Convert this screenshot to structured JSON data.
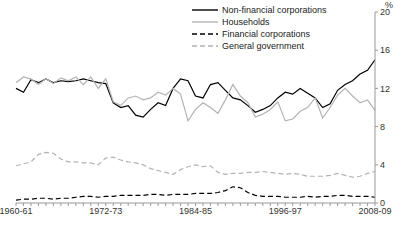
{
  "chart_data": {
    "type": "line",
    "y_label": "%",
    "categories": [
      "1960-61",
      null,
      null,
      null,
      null,
      null,
      null,
      null,
      null,
      null,
      null,
      null,
      "1972-73",
      null,
      null,
      null,
      null,
      null,
      null,
      null,
      null,
      null,
      null,
      null,
      "1984-85",
      null,
      null,
      null,
      null,
      null,
      null,
      null,
      null,
      null,
      null,
      null,
      "1996-97",
      null,
      null,
      null,
      null,
      null,
      null,
      null,
      null,
      null,
      null,
      null,
      "2008-09"
    ],
    "series": [
      {
        "name": "Non-financial corporations",
        "color": "#000000",
        "line_style": "solid",
        "values": [
          12.0,
          11.6,
          12.9,
          12.6,
          13.0,
          12.6,
          12.8,
          12.7,
          12.8,
          13.0,
          12.8,
          12.6,
          12.5,
          10.5,
          10.0,
          10.2,
          9.2,
          9.0,
          9.8,
          10.5,
          10.2,
          12.0,
          13.0,
          12.8,
          11.2,
          11.0,
          12.4,
          12.6,
          11.8,
          11.0,
          10.8,
          10.2,
          9.5,
          9.8,
          10.2,
          11.0,
          11.6,
          11.4,
          12.0,
          11.5,
          11.0,
          10.0,
          10.4,
          11.8,
          12.4,
          12.8,
          13.5,
          13.9,
          15.0
        ]
      },
      {
        "name": "Households",
        "color": "#b3b3b3",
        "line_style": "solid",
        "values": [
          12.6,
          13.2,
          13.0,
          12.4,
          13.0,
          12.5,
          13.1,
          12.8,
          13.2,
          12.4,
          13.2,
          12.0,
          13.0,
          10.6,
          10.2,
          11.0,
          11.2,
          10.8,
          11.0,
          11.6,
          11.3,
          12.0,
          11.4,
          8.6,
          9.8,
          10.5,
          10.0,
          9.4,
          10.8,
          12.4,
          11.2,
          10.5,
          9.0,
          9.3,
          9.8,
          10.6,
          8.6,
          8.8,
          9.6,
          10.0,
          11.0,
          8.9,
          10.0,
          11.3,
          12.0,
          11.2,
          10.5,
          10.8,
          9.7
        ]
      },
      {
        "name": "Financial corporations",
        "color": "#000000",
        "line_style": "dashed",
        "values": [
          0.3,
          0.4,
          0.4,
          0.5,
          0.5,
          0.4,
          0.5,
          0.5,
          0.6,
          0.7,
          0.7,
          0.6,
          0.7,
          0.7,
          0.8,
          0.8,
          0.8,
          0.8,
          0.9,
          0.9,
          0.8,
          0.9,
          0.9,
          0.9,
          1.0,
          1.0,
          1.0,
          1.1,
          1.3,
          1.7,
          1.6,
          1.1,
          0.8,
          0.7,
          0.7,
          0.7,
          0.6,
          0.6,
          0.6,
          0.7,
          0.6,
          0.7,
          0.7,
          0.8,
          0.8,
          0.7,
          0.7,
          0.7,
          0.6
        ]
      },
      {
        "name": "General government",
        "color": "#b3b3b3",
        "line_style": "dashed",
        "values": [
          3.9,
          4.1,
          4.3,
          5.1,
          5.3,
          5.2,
          4.6,
          4.3,
          4.3,
          4.2,
          4.2,
          4.0,
          4.7,
          4.8,
          4.5,
          4.3,
          4.2,
          4.0,
          3.6,
          3.4,
          3.2,
          3.0,
          3.5,
          3.8,
          4.0,
          3.8,
          3.9,
          3.2,
          3.0,
          3.1,
          3.1,
          3.2,
          3.2,
          3.3,
          3.2,
          3.1,
          3.0,
          3.1,
          3.0,
          2.8,
          2.8,
          2.8,
          2.9,
          3.1,
          2.9,
          2.7,
          2.8,
          3.1,
          3.3
        ]
      }
    ],
    "ylim": [
      0,
      20
    ],
    "yticks": [
      0,
      4,
      8,
      12,
      16,
      20
    ],
    "grid": false,
    "legend": "top"
  }
}
